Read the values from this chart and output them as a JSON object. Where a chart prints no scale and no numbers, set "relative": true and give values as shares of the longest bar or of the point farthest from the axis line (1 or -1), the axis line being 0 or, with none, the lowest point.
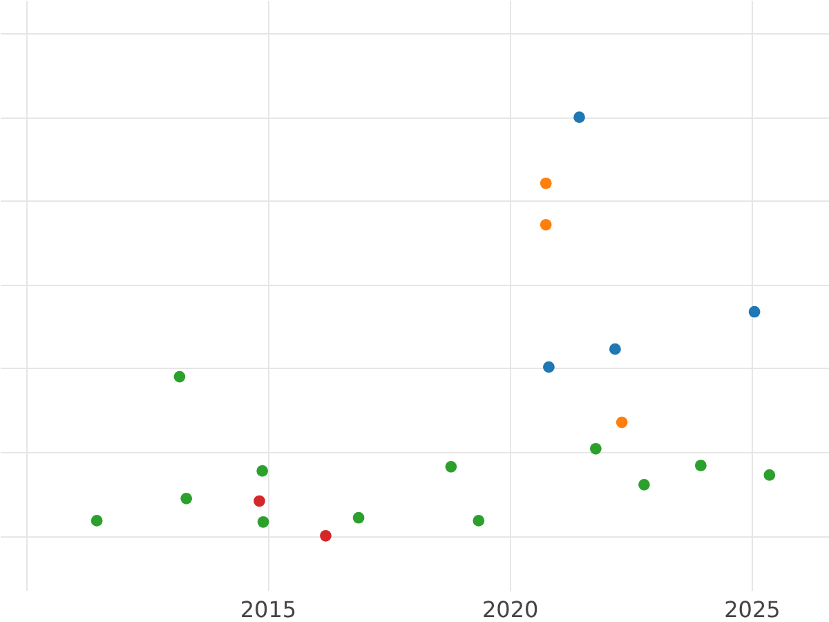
{
  "chart_data": {
    "type": "scatter",
    "relative": true,
    "grid": true,
    "marker": "circle",
    "xlim": [
      2009.47,
      2026.6
    ],
    "xticks": [
      {
        "value": 2010,
        "label": null
      },
      2015,
      2020,
      2025
    ],
    "series": [
      {
        "color": "#1f77b4",
        "x": [
          2021.44,
          2025.06,
          2020.81,
          2022.18
        ],
        "values": [
          1,
          0.535,
          0.403,
          0.446
        ]
      },
      {
        "color": "#ff7f0e",
        "x": [
          2020.75,
          2020.75,
          2022.32
        ],
        "values": [
          0.842,
          0.743,
          0.271
        ]
      },
      {
        "color": "#2ca02c",
        "x": [
          2013.18,
          2014.89,
          2013.32,
          2011.47,
          2014.91,
          2016.88,
          2018.79,
          2019.36,
          2021.78,
          2022.78,
          2023.95,
          2025.37
        ],
        "values": [
          0.38,
          0.155,
          0.089,
          0.036,
          0.033,
          0.043,
          0.165,
          0.036,
          0.208,
          0.122,
          0.168,
          0.145
        ]
      },
      {
        "color": "#d62728",
        "x": [
          2014.83,
          2016.2
        ],
        "values": [
          0.083,
          0
        ]
      }
    ]
  }
}
